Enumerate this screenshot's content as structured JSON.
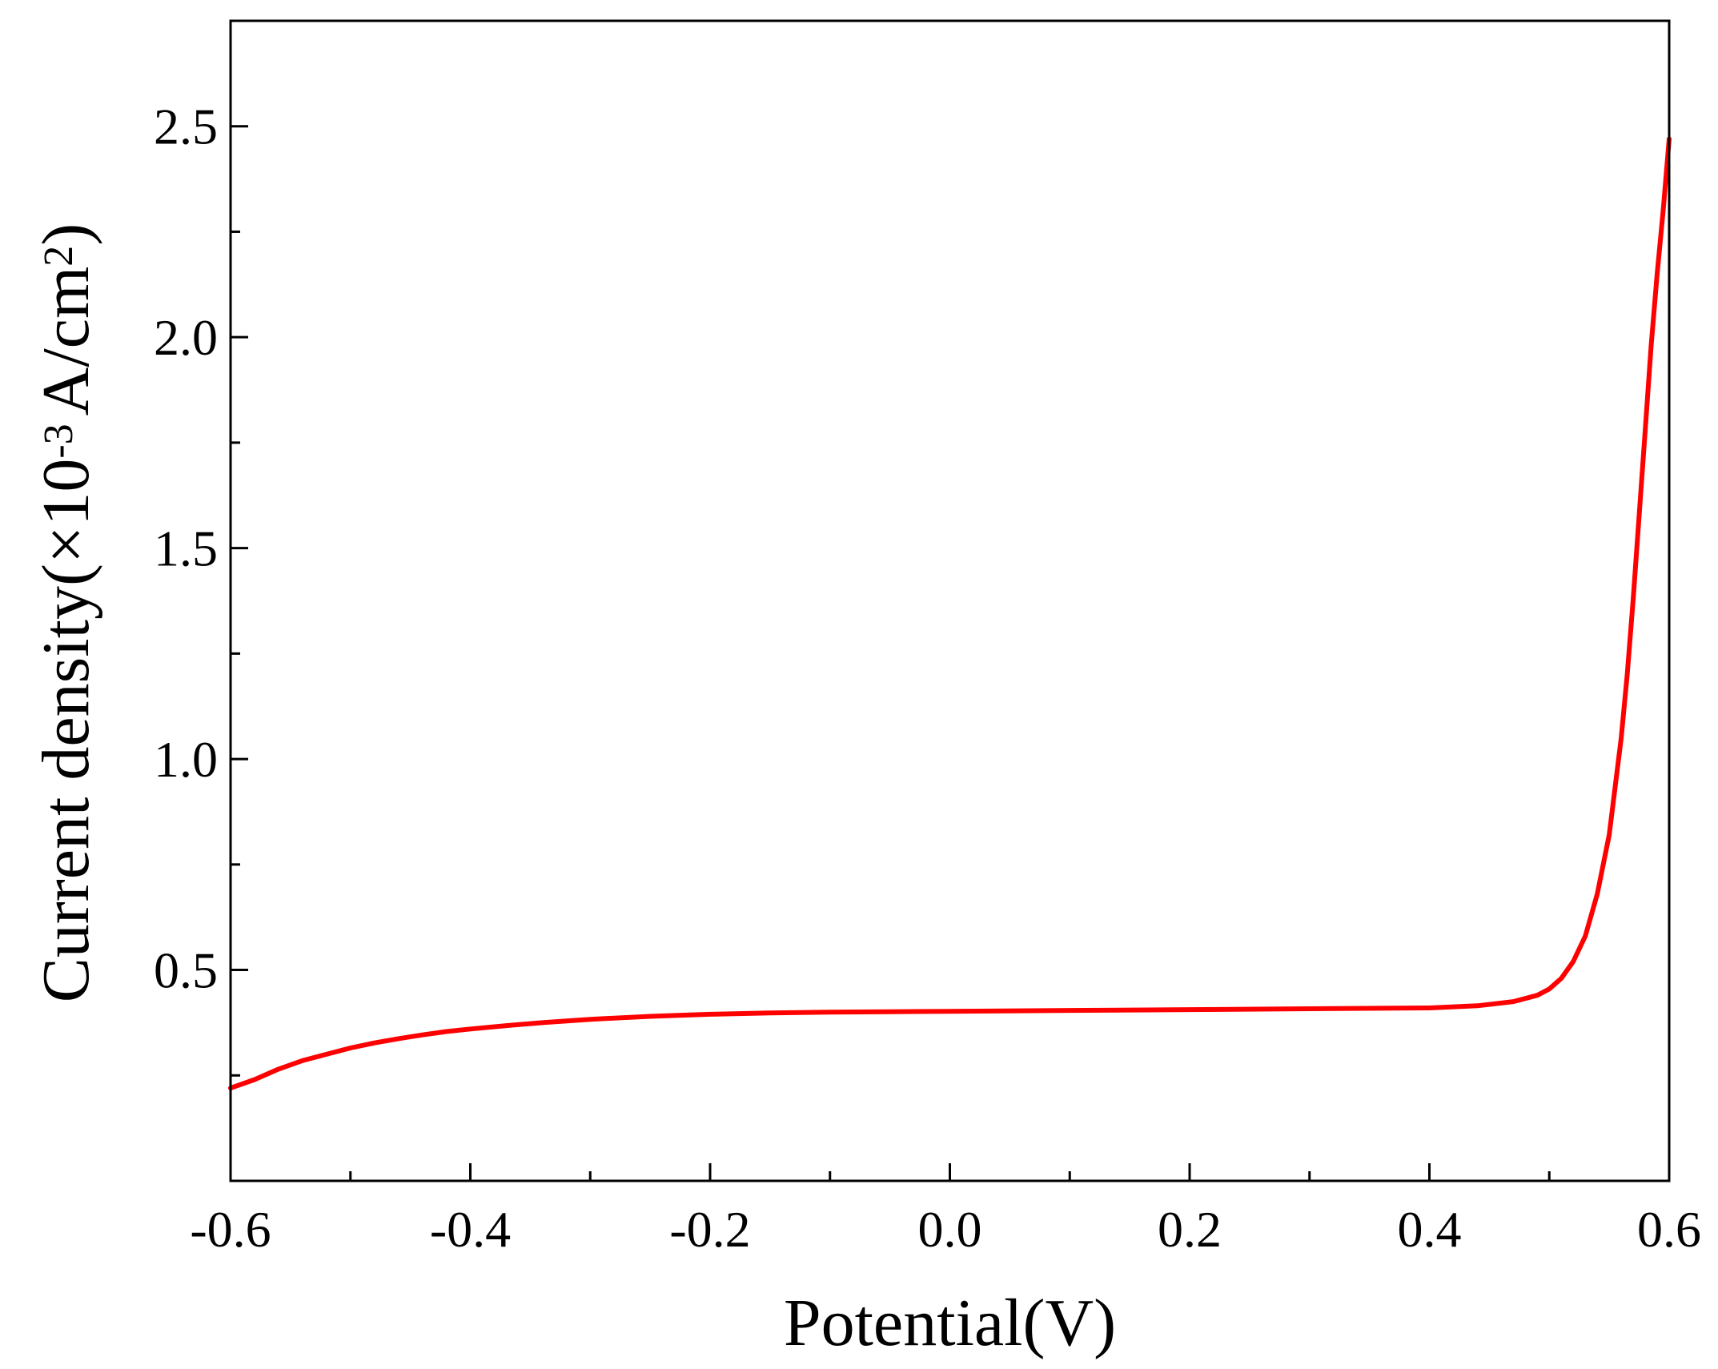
{
  "chart_data": {
    "type": "line",
    "title": "",
    "xlabel": "Potential(V)",
    "ylabel": {
      "prefix": "Current density(×10",
      "exp": "-3",
      "mid": "A/cm",
      "exp2": "2",
      "suffix": ")"
    },
    "xlim": [
      -0.6,
      0.6
    ],
    "ylim": [
      0.0,
      2.75
    ],
    "xticks": [
      -0.6,
      -0.4,
      -0.2,
      0.0,
      0.2,
      0.4,
      0.6
    ],
    "xtick_labels": [
      "-0.6",
      "-0.4",
      "-0.2",
      "0.0",
      "0.2",
      "0.4",
      "0.6"
    ],
    "xminor": [
      -0.5,
      -0.3,
      -0.1,
      0.1,
      0.3,
      0.5
    ],
    "yticks": [
      0.5,
      1.0,
      1.5,
      2.0,
      2.5
    ],
    "ytick_labels": [
      "0.5",
      "1.0",
      "1.5",
      "2.0",
      "2.5"
    ],
    "yminor": [
      0.25,
      0.75,
      1.25,
      1.75,
      2.25
    ],
    "grid": false,
    "series": [
      {
        "color": "#ff0000",
        "x": [
          -0.6,
          -0.58,
          -0.56,
          -0.54,
          -0.52,
          -0.5,
          -0.48,
          -0.46,
          -0.44,
          -0.42,
          -0.4,
          -0.37,
          -0.34,
          -0.3,
          -0.25,
          -0.2,
          -0.15,
          -0.1,
          -0.05,
          0.0,
          0.1,
          0.2,
          0.3,
          0.4,
          0.44,
          0.47,
          0.49,
          0.5,
          0.51,
          0.52,
          0.53,
          0.54,
          0.55,
          0.56,
          0.565,
          0.57,
          0.575,
          0.58,
          0.585,
          0.59,
          0.595,
          0.6
        ],
        "y": [
          0.22,
          0.24,
          0.265,
          0.285,
          0.3,
          0.315,
          0.327,
          0.337,
          0.346,
          0.354,
          0.36,
          0.368,
          0.375,
          0.383,
          0.39,
          0.395,
          0.398,
          0.4,
          0.401,
          0.402,
          0.404,
          0.406,
          0.408,
          0.41,
          0.415,
          0.425,
          0.44,
          0.455,
          0.48,
          0.52,
          0.58,
          0.68,
          0.82,
          1.05,
          1.2,
          1.38,
          1.58,
          1.78,
          1.98,
          2.15,
          2.3,
          2.47
        ]
      }
    ]
  }
}
